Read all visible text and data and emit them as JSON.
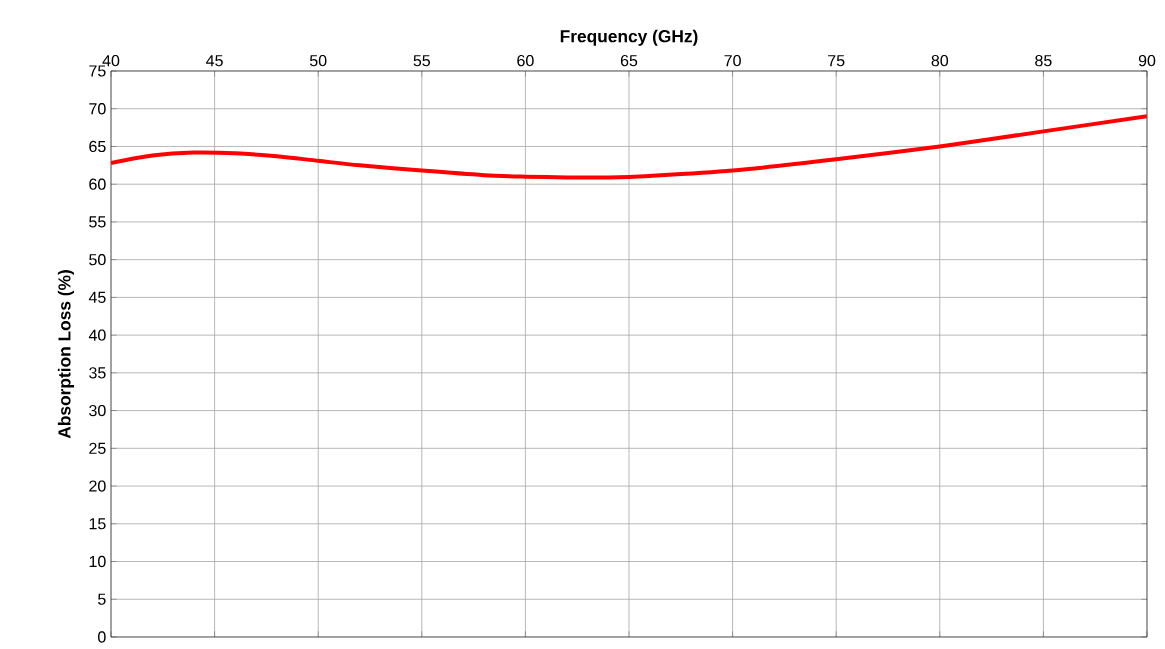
{
  "chart_data": {
    "type": "line",
    "xlabel": "Frequency (GHz)",
    "ylabel": "Absorption Loss (%)",
    "xlim": [
      40,
      90
    ],
    "xticks": [
      40,
      45,
      50,
      55,
      60,
      65,
      70,
      75,
      80,
      85,
      90
    ],
    "ylim": [
      0,
      75
    ],
    "yticks": [
      0,
      5,
      10,
      15,
      20,
      25,
      30,
      35,
      40,
      45,
      50,
      55,
      60,
      65,
      70,
      75
    ],
    "grid": true,
    "line_style": "solid",
    "series": [
      {
        "color": "#ff0000",
        "x": [
          40,
          42,
          44,
          46,
          48,
          50,
          52,
          55,
          58,
          60,
          62,
          64,
          66,
          70,
          75,
          80,
          85,
          90
        ],
        "values": [
          62.8,
          63.8,
          64.2,
          64.1,
          63.7,
          63.1,
          62.5,
          61.8,
          61.2,
          61.0,
          60.9,
          60.9,
          61.1,
          61.8,
          63.3,
          65.0,
          67.0,
          69.0
        ]
      }
    ]
  }
}
